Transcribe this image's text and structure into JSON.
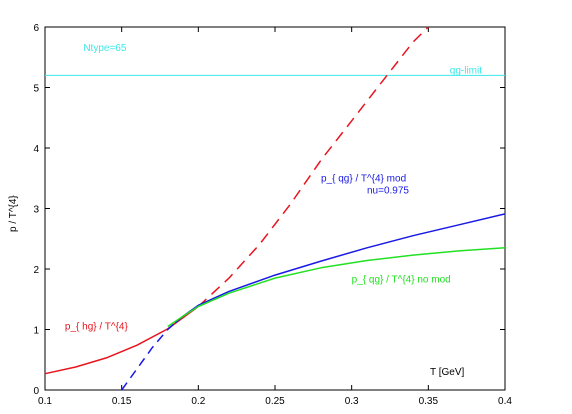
{
  "chart_data": {
    "type": "line",
    "title": "",
    "xlabel": "T [GeV]",
    "ylabel": "p / T^{4}",
    "xlim": [
      0.1,
      0.4
    ],
    "ylim": [
      0,
      6
    ],
    "xticks": [
      0.1,
      0.15,
      0.2,
      0.25,
      0.3,
      0.35,
      0.4
    ],
    "xtick_labels": [
      "0.1",
      "0.15",
      "0.2",
      "0.25",
      "0.3",
      "0.35",
      "0.4"
    ],
    "yticks": [
      0,
      1,
      2,
      3,
      4,
      5,
      6
    ],
    "ytick_labels": [
      "0",
      "1",
      "2",
      "3",
      "4",
      "5",
      "6"
    ],
    "grid": false,
    "series": [
      {
        "key": "hg",
        "color": "#e8141e",
        "style": "solid-then-dashed",
        "solid_until_x": 0.2,
        "x": [
          0.1,
          0.12,
          0.14,
          0.16,
          0.18,
          0.2,
          0.22,
          0.24,
          0.26,
          0.28,
          0.3,
          0.32,
          0.34,
          0.35
        ],
        "y": [
          0.27,
          0.38,
          0.53,
          0.74,
          1.01,
          1.38,
          1.85,
          2.41,
          3.07,
          3.8,
          4.45,
          5.1,
          5.75,
          6.0
        ]
      },
      {
        "key": "qg-mod",
        "color": "#1a1ae6",
        "style": "dashed-then-solid",
        "solid_from_x": 0.185,
        "x": [
          0.15,
          0.16,
          0.17,
          0.18,
          0.19,
          0.2,
          0.22,
          0.25,
          0.28,
          0.31,
          0.34,
          0.37,
          0.4
        ],
        "y": [
          0.0,
          0.35,
          0.7,
          1.0,
          1.22,
          1.4,
          1.63,
          1.9,
          2.13,
          2.35,
          2.55,
          2.73,
          2.91
        ]
      },
      {
        "key": "qg-nomod",
        "color": "#22e022",
        "style": "solid",
        "x": [
          0.18,
          0.19,
          0.2,
          0.22,
          0.25,
          0.28,
          0.31,
          0.34,
          0.37,
          0.4
        ],
        "y": [
          1.05,
          1.22,
          1.38,
          1.6,
          1.85,
          2.02,
          2.14,
          2.23,
          2.3,
          2.35
        ]
      }
    ],
    "reference_line": {
      "y": 5.2,
      "color": "#3ce8e8"
    },
    "annotations": [
      {
        "key": "ntype",
        "text": "Ntype=65",
        "x": 0.125,
        "y": 5.6,
        "color": "#3ce8e8",
        "anchor": "start"
      },
      {
        "key": "qg-limit",
        "text": "qg-limit",
        "x": 0.385,
        "y": 5.23,
        "color": "#3ce8e8",
        "anchor": "end"
      },
      {
        "key": "mod-label",
        "text": "p_{ qg} / T^{4} mod",
        "x": 0.28,
        "y": 3.45,
        "color": "#1a1ae6",
        "anchor": "start"
      },
      {
        "key": "nu-label",
        "text": "nu=0.975",
        "x": 0.31,
        "y": 3.25,
        "color": "#1a1ae6",
        "anchor": "start"
      },
      {
        "key": "nomod-label",
        "text": "p_{ qg} / T^{4} no mod",
        "x": 0.3,
        "y": 1.78,
        "color": "#22e022",
        "anchor": "start"
      },
      {
        "key": "hg-label",
        "text": "p_{ hg} / T^{4}",
        "x": 0.113,
        "y": 1.0,
        "color": "#e8141e",
        "anchor": "start"
      }
    ]
  }
}
